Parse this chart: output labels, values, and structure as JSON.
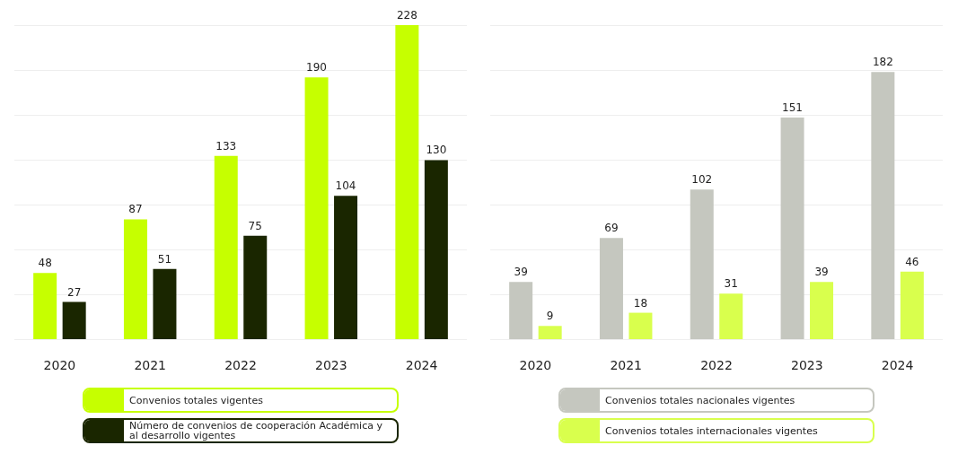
{
  "chart_data": [
    {
      "type": "bar",
      "categories": [
        "2020",
        "2021",
        "2022",
        "2023",
        "2024"
      ],
      "series": [
        {
          "name": "Convenios totales vigentes",
          "color": "#c6ff00",
          "values": [
            48,
            87,
            133,
            190,
            228
          ]
        },
        {
          "name": "Número de convenios de cooperación Académica y al desarrollo vigentes",
          "color": "#1a2600",
          "values": [
            27,
            51,
            75,
            104,
            130
          ]
        }
      ],
      "data_labels": true,
      "grid": "y",
      "ylim": [
        0,
        228
      ],
      "yticks": [
        {
          "value": 0,
          "label": null
        },
        {
          "value": 32.6,
          "label": null
        },
        {
          "value": 65.1,
          "label": null
        },
        {
          "value": 97.7,
          "label": null
        },
        {
          "value": 130.3,
          "label": null
        },
        {
          "value": 162.9,
          "label": null
        },
        {
          "value": 195.4,
          "label": null
        },
        {
          "value": 228,
          "label": null
        }
      ],
      "tick_labels": "x",
      "legend": "bottom"
    },
    {
      "type": "bar",
      "categories": [
        "2020",
        "2021",
        "2022",
        "2023",
        "2024"
      ],
      "series": [
        {
          "name": "Convenios totales nacionales vigentes",
          "color": "#c5c7bf",
          "values": [
            39,
            69,
            102,
            151,
            182
          ]
        },
        {
          "name": "Convenios totales internacionales vigentes",
          "color": "#d9ff4d",
          "values": [
            9,
            18,
            31,
            39,
            46
          ]
        }
      ],
      "data_labels": true,
      "grid": "y",
      "ylim": [
        0,
        214
      ],
      "yticks": [
        {
          "value": 0,
          "label": null
        },
        {
          "value": 30.6,
          "label": null
        },
        {
          "value": 61.1,
          "label": null
        },
        {
          "value": 91.7,
          "label": null
        },
        {
          "value": 122.3,
          "label": null
        },
        {
          "value": 152.9,
          "label": null
        },
        {
          "value": 183.4,
          "label": null
        },
        {
          "value": 214,
          "label": null
        }
      ],
      "tick_labels": "x",
      "legend": "bottom"
    }
  ]
}
